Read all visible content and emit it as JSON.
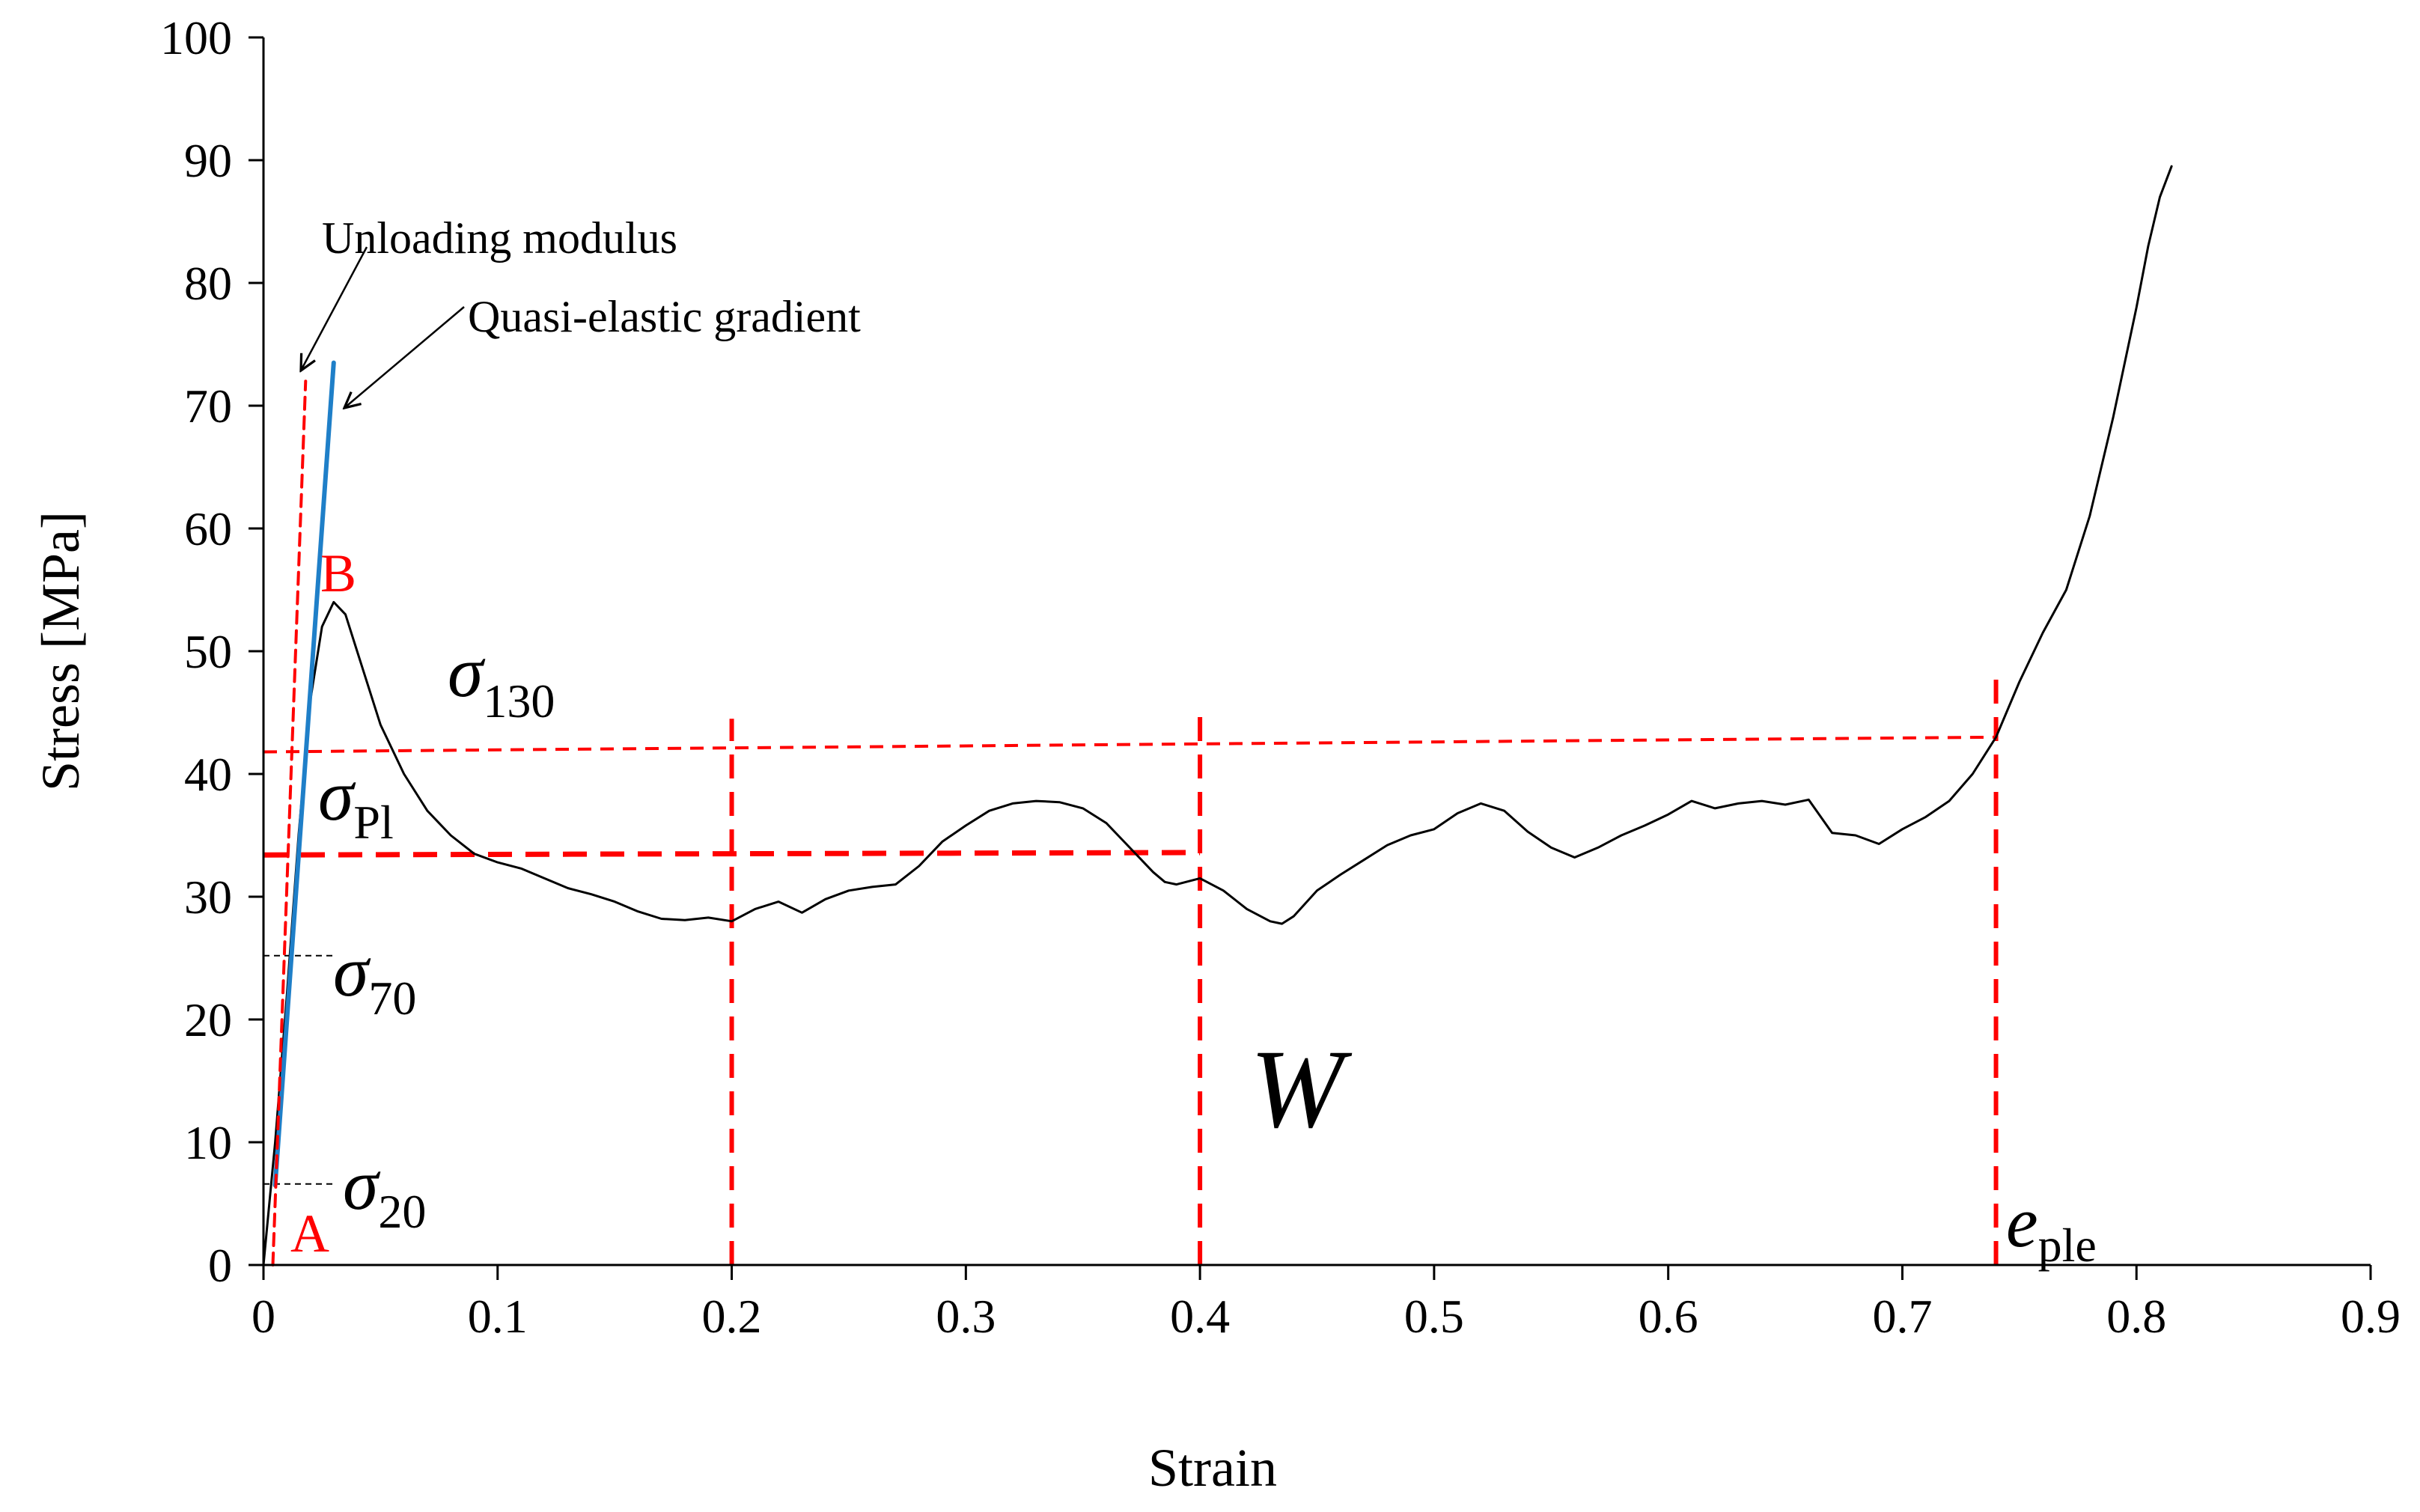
{
  "chart_data": {
    "type": "line",
    "title": "",
    "xlabel": "Strain",
    "ylabel": "Stress [MPa]",
    "xlim": [
      0,
      0.9
    ],
    "ylim": [
      0,
      100
    ],
    "x_ticks": [
      "0",
      "0.1",
      "0.2",
      "0.3",
      "0.4",
      "0.5",
      "0.6",
      "0.7",
      "0.8",
      "0.9"
    ],
    "y_ticks": [
      "0",
      "10",
      "20",
      "30",
      "40",
      "50",
      "60",
      "70",
      "80",
      "90",
      "100"
    ],
    "series": [
      {
        "name": "stress-strain curve",
        "color": "#000000",
        "x": [
          0,
          0.005,
          0.01,
          0.015,
          0.02,
          0.025,
          0.03,
          0.035,
          0.04,
          0.05,
          0.06,
          0.07,
          0.08,
          0.09,
          0.1,
          0.11,
          0.12,
          0.13,
          0.14,
          0.15,
          0.16,
          0.17,
          0.18,
          0.19,
          0.2,
          0.21,
          0.22,
          0.23,
          0.24,
          0.25,
          0.26,
          0.27,
          0.28,
          0.29,
          0.3,
          0.31,
          0.32,
          0.33,
          0.34,
          0.35,
          0.36,
          0.37,
          0.38,
          0.385,
          0.39,
          0.4,
          0.41,
          0.42,
          0.43,
          0.435,
          0.44,
          0.45,
          0.46,
          0.47,
          0.48,
          0.49,
          0.5,
          0.51,
          0.52,
          0.53,
          0.54,
          0.55,
          0.56,
          0.57,
          0.58,
          0.59,
          0.6,
          0.61,
          0.62,
          0.63,
          0.64,
          0.65,
          0.66,
          0.67,
          0.68,
          0.69,
          0.7,
          0.71,
          0.72,
          0.73,
          0.74,
          0.75,
          0.76,
          0.77,
          0.78,
          0.79,
          0.8,
          0.805,
          0.81,
          0.815
        ],
        "y": [
          0,
          10,
          22,
          35,
          46,
          52,
          54,
          53,
          50,
          44,
          40,
          37,
          35,
          33.5,
          32.8,
          32.3,
          31.5,
          30.7,
          30.2,
          29.6,
          28.8,
          28.2,
          28.1,
          28.3,
          28.0,
          29.0,
          29.6,
          28.7,
          29.8,
          30.5,
          30.8,
          31.0,
          32.5,
          34.5,
          35.8,
          37.0,
          37.6,
          37.8,
          37.7,
          37.2,
          36.0,
          34.0,
          32.0,
          31.2,
          31.0,
          31.5,
          30.5,
          29.0,
          28.0,
          27.8,
          28.4,
          30.5,
          31.8,
          33.0,
          34.2,
          35.0,
          35.5,
          36.8,
          37.6,
          37.0,
          35.3,
          34.0,
          33.2,
          34.0,
          35.0,
          35.8,
          36.7,
          37.8,
          37.2,
          37.6,
          37.8,
          37.5,
          37.9,
          35.2,
          35.0,
          34.3,
          35.5,
          36.5,
          37.8,
          40.0,
          43.0,
          47.5,
          51.5,
          55.0,
          61.0,
          69.0,
          78.0,
          83.0,
          87.0,
          89.5
        ]
      },
      {
        "name": "Quasi-elastic gradient",
        "color": "#1f7fc8",
        "x": [
          0.005,
          0.03
        ],
        "y": [
          6.5,
          73.5
        ]
      },
      {
        "name": "Unloading modulus",
        "color": "#ff0000",
        "x": [
          0.004,
          0.018
        ],
        "y": [
          0,
          72
        ]
      }
    ],
    "reference_lines": [
      {
        "name": "sigma-130-level",
        "x": [
          0.0,
          0.74
        ],
        "y": [
          41.8,
          43.0
        ],
        "color": "#ff0000"
      },
      {
        "name": "sigma-pl-level",
        "x": [
          0.0,
          0.4
        ],
        "y": [
          33.4,
          33.6
        ],
        "color": "#ff0000"
      },
      {
        "name": "strain-0.2-line",
        "x": [
          0.2,
          0.2
        ],
        "y": [
          0,
          44.5
        ],
        "color": "#ff0000"
      },
      {
        "name": "strain-0.4-line",
        "x": [
          0.4,
          0.4
        ],
        "y": [
          0,
          45.5
        ],
        "color": "#ff0000"
      },
      {
        "name": "e-ple-line",
        "x": [
          0.74,
          0.74
        ],
        "y": [
          0,
          48.0
        ],
        "color": "#ff0000"
      },
      {
        "name": "sigma-70-level",
        "x": [
          0.0,
          0.03
        ],
        "y": [
          25.2,
          25.2
        ],
        "color": "#000000"
      },
      {
        "name": "sigma-20-level",
        "x": [
          0.0,
          0.03
        ],
        "y": [
          6.6,
          6.6
        ],
        "color": "#000000"
      }
    ],
    "annotations": {
      "unloading_modulus": "Unloading modulus",
      "quasi_elastic_gradient": "Quasi-elastic gradient",
      "point_a": "A",
      "point_b": "B",
      "sigma": "σ",
      "sigma_130_sub": "130",
      "sigma_pl_sub": "Pl",
      "sigma_70_sub": "70",
      "sigma_20_sub": "20",
      "work_label": "W",
      "e": "e",
      "e_ple_sub": "ple"
    }
  }
}
